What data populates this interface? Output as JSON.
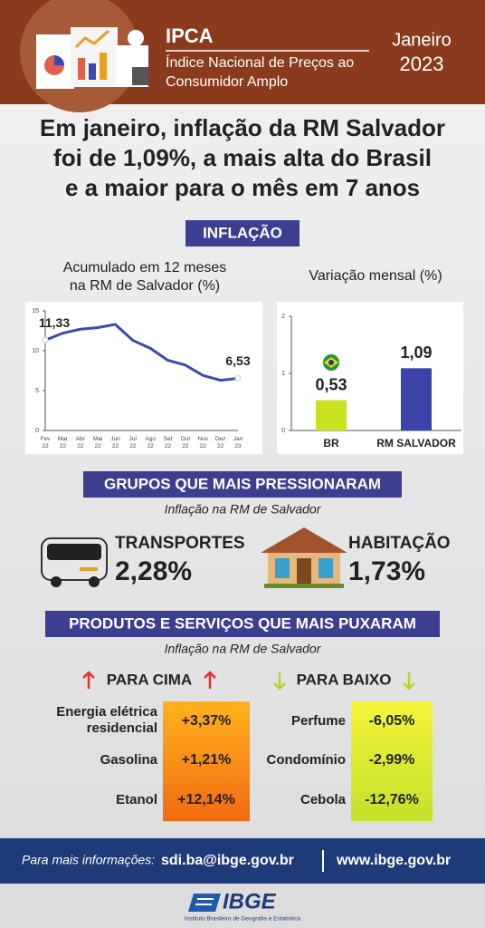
{
  "header": {
    "title": "IPCA",
    "subtitle": [
      "Índice Nacional de Preços ao",
      "Consumidor Amplo"
    ],
    "month": "Janeiro",
    "year": "2023"
  },
  "headline": [
    "Em janeiro, inflação da RM Salvador",
    "foi de 1,09%, a mais alta do Brasil",
    "e a maior para o mês em 7 anos"
  ],
  "section": "INFLAÇÃO",
  "chart_data": [
    {
      "type": "line",
      "title": [
        "Acumulado em 12 meses",
        "na RM de Salvador (%)"
      ],
      "categories": [
        "Fev 22",
        "Mar 22",
        "Abr 22",
        "Mai 22",
        "Jun 22",
        "Jul 22",
        "Ago 22",
        "Set 22",
        "Out 22",
        "Nov 22",
        "Dez 22",
        "Jan 23"
      ],
      "values": [
        11.33,
        12.2,
        12.7,
        12.9,
        13.3,
        11.3,
        10.3,
        8.8,
        8.2,
        6.9,
        6.3,
        6.53
      ],
      "value_labels": [
        "11,33",
        null,
        null,
        null,
        null,
        null,
        null,
        null,
        null,
        null,
        null,
        "6,53"
      ],
      "color": "#3a4ab0",
      "ylim": [
        0,
        15
      ],
      "yticks": [
        0,
        5,
        10,
        15
      ],
      "grid": false
    },
    {
      "type": "bar",
      "title": [
        "Variação mensal (%)"
      ],
      "categories": [
        "BR",
        "RM SALVADOR"
      ],
      "values": [
        0.53,
        1.09
      ],
      "value_labels": [
        "0,53",
        "1,09"
      ],
      "colors": [
        "#c9e11f",
        "#3a44a8"
      ],
      "ylim": [
        0,
        2
      ],
      "yticks": [
        0,
        1,
        2
      ],
      "grid": false
    }
  ],
  "groups": {
    "title": "GRUPOS QUE MAIS PRESSIONARAM",
    "subtitle": "Inflação na RM de Salvador",
    "items": [
      {
        "name": "TRANSPORTES",
        "value": "2,28%"
      },
      {
        "name": "HABITAÇÃO",
        "value": "1,73%"
      }
    ]
  },
  "products": {
    "title": "PRODUTOS E SERVIÇOS QUE MAIS PUXARAM",
    "subtitle": "Inflação na RM de Salvador",
    "up": {
      "title": "PARA CIMA",
      "items": [
        {
          "name": [
            "Energia elétrica",
            "residencial"
          ],
          "value": "+3,37%"
        },
        {
          "name": [
            "Gasolina"
          ],
          "value": "+1,21%"
        },
        {
          "name": [
            "Etanol"
          ],
          "value": "+12,14%"
        }
      ]
    },
    "down": {
      "title": "PARA BAIXO",
      "items": [
        {
          "name": [
            "Perfume"
          ],
          "value": "-6,05%"
        },
        {
          "name": [
            "Condomínio"
          ],
          "value": "-2,99%"
        },
        {
          "name": [
            "Cebola"
          ],
          "value": "-12,76%"
        }
      ]
    }
  },
  "footer": {
    "label": "Para mais informações:",
    "email": "sdi.ba@ibge.gov.br",
    "site": "www.ibge.gov.br"
  },
  "logo": {
    "name": "IBGE",
    "full": "Instituto Brasileiro de Geografia e Estatística"
  }
}
